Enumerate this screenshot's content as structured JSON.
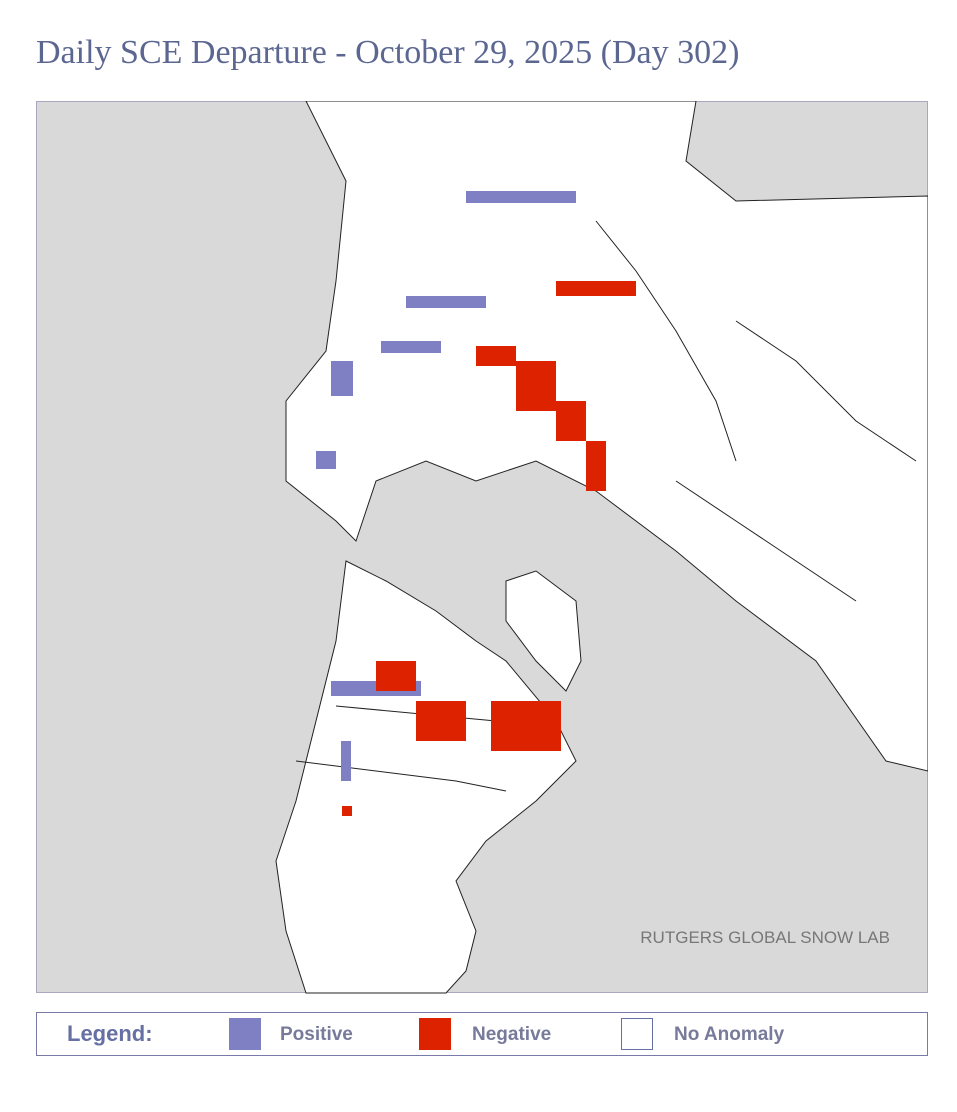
{
  "header": {
    "title": "Daily SCE Departure - October 29, 2025 (Day 302)"
  },
  "map": {
    "credit": "RUTGERS GLOBAL SNOW LAB"
  },
  "legend": {
    "title": "Legend:",
    "items": [
      {
        "label": "Positive",
        "color": "#7f7fc4"
      },
      {
        "label": "Negative",
        "color": "#dd2200"
      },
      {
        "label": "No Anomaly",
        "color": "#ffffff"
      }
    ]
  }
}
